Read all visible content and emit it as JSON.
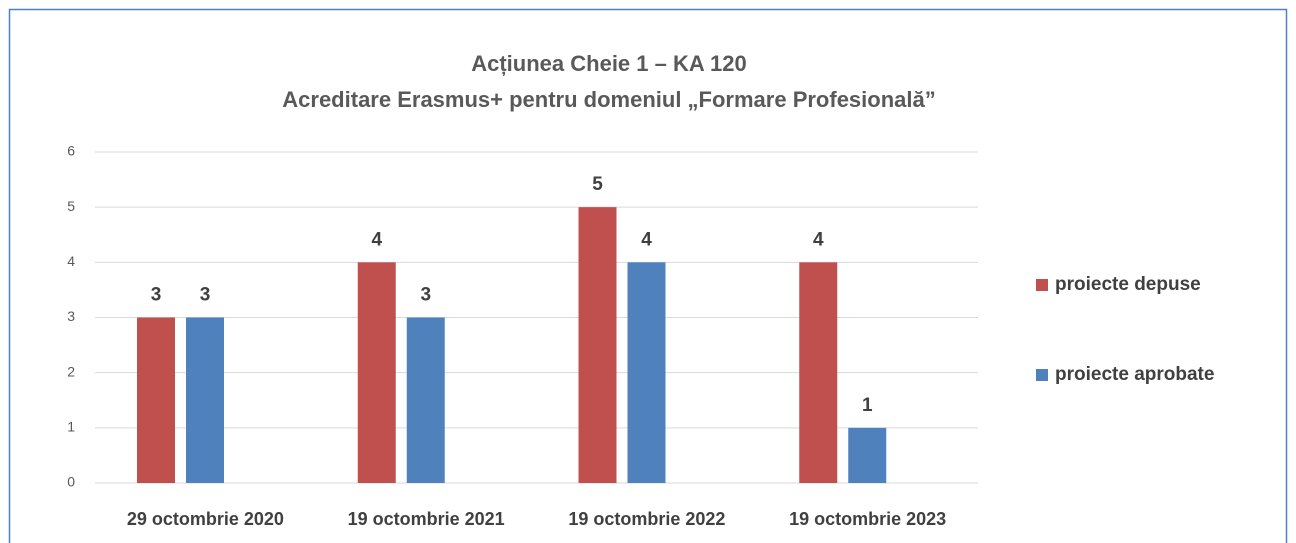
{
  "chart_data": {
    "type": "bar",
    "title": "Acțiunea Cheie 1 – KA 120",
    "subtitle": "Acreditare Erasmus+ pentru domeniul „Formare Profesională”",
    "categories": [
      "29 octombrie 2020",
      "19 octombrie 2021",
      "19 octombrie 2022",
      "19 octombrie 2023"
    ],
    "series": [
      {
        "name": "proiecte depuse",
        "color": "#c0504d",
        "values": [
          3,
          4,
          5,
          4
        ]
      },
      {
        "name": "proiecte aprobate",
        "color": "#4f81bd",
        "values": [
          3,
          3,
          4,
          1
        ]
      }
    ],
    "ylim": [
      0,
      6
    ],
    "yticks": [
      0,
      1,
      2,
      3,
      4,
      5,
      6
    ],
    "grid": true,
    "legend": "right"
  }
}
